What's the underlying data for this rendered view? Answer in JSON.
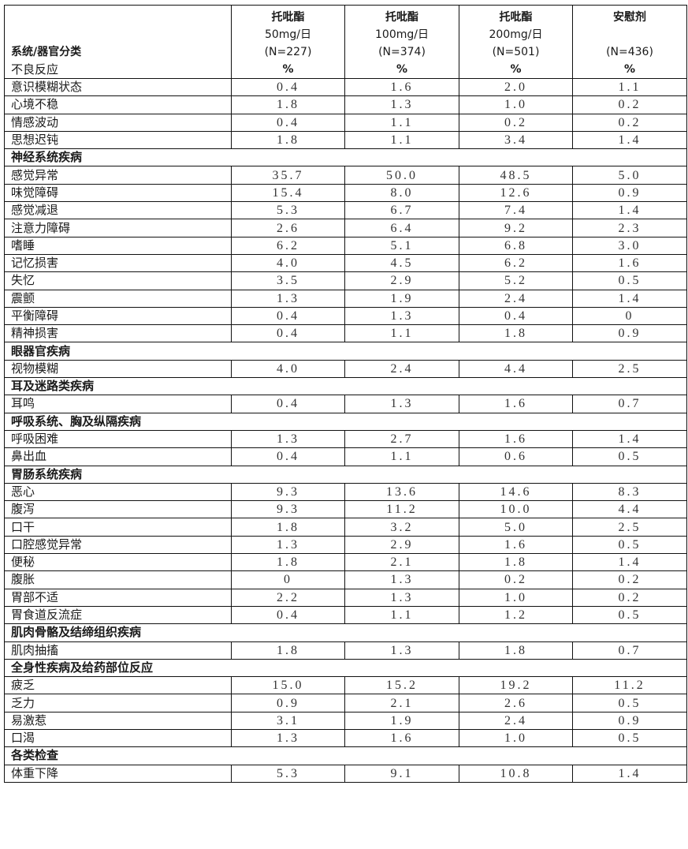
{
  "header": {
    "row_label_top": "系统/器官分类",
    "row_label_bottom": "不良反应",
    "columns": [
      {
        "drug": "托吡酯",
        "dose": "50mg/日",
        "n": "(N=227)",
        "unit": "%"
      },
      {
        "drug": "托吡酯",
        "dose": "100mg/日",
        "n": "(N=374)",
        "unit": "%"
      },
      {
        "drug": "托吡酯",
        "dose": "200mg/日",
        "n": "(N=501)",
        "unit": "%"
      },
      {
        "drug": "安慰剂",
        "dose": "",
        "n": "(N=436)",
        "unit": "%"
      }
    ]
  },
  "rows": [
    {
      "name": "意识模糊状态",
      "values": [
        "0.4",
        "1.6",
        "2.0",
        "1.1"
      ]
    },
    {
      "name": "心境不稳",
      "values": [
        "1.8",
        "1.3",
        "1.0",
        "0.2"
      ]
    },
    {
      "name": "情感波动",
      "values": [
        "0.4",
        "1.1",
        "0.2",
        "0.2"
      ]
    },
    {
      "name": "思想迟钝",
      "values": [
        "1.8",
        "1.1",
        "3.4",
        "1.4"
      ]
    },
    {
      "section": "神经系统疾病"
    },
    {
      "name": "感觉异常",
      "values": [
        "35.7",
        "50.0",
        "48.5",
        "5.0"
      ]
    },
    {
      "name": "味觉障碍",
      "values": [
        "15.4",
        "8.0",
        "12.6",
        "0.9"
      ]
    },
    {
      "name": "感觉减退",
      "values": [
        "5.3",
        "6.7",
        "7.4",
        "1.4"
      ]
    },
    {
      "name": "注意力障碍",
      "values": [
        "2.6",
        "6.4",
        "9.2",
        "2.3"
      ]
    },
    {
      "name": "嗜睡",
      "values": [
        "6.2",
        "5.1",
        "6.8",
        "3.0"
      ]
    },
    {
      "name": "记忆损害",
      "values": [
        "4.0",
        "4.5",
        "6.2",
        "1.6"
      ]
    },
    {
      "name": "失忆",
      "values": [
        "3.5",
        "2.9",
        "5.2",
        "0.5"
      ]
    },
    {
      "name": "震颤",
      "values": [
        "1.3",
        "1.9",
        "2.4",
        "1.4"
      ]
    },
    {
      "name": "平衡障碍",
      "values": [
        "0.4",
        "1.3",
        "0.4",
        "0"
      ]
    },
    {
      "name": "精神损害",
      "values": [
        "0.4",
        "1.1",
        "1.8",
        "0.9"
      ]
    },
    {
      "section": "眼器官疾病"
    },
    {
      "name": "视物模糊",
      "values": [
        "4.0",
        "2.4",
        "4.4",
        "2.5"
      ]
    },
    {
      "section": "耳及迷路类疾病"
    },
    {
      "name": "耳鸣",
      "values": [
        "0.4",
        "1.3",
        "1.6",
        "0.7"
      ]
    },
    {
      "section": "呼吸系统、胸及纵隔疾病"
    },
    {
      "name": "呼吸困难",
      "values": [
        "1.3",
        "2.7",
        "1.6",
        "1.4"
      ]
    },
    {
      "name": "鼻出血",
      "values": [
        "0.4",
        "1.1",
        "0.6",
        "0.5"
      ]
    },
    {
      "section": "胃肠系统疾病"
    },
    {
      "name": "恶心",
      "values": [
        "9.3",
        "13.6",
        "14.6",
        "8.3"
      ]
    },
    {
      "name": "腹泻",
      "values": [
        "9.3",
        "11.2",
        "10.0",
        "4.4"
      ]
    },
    {
      "name": "口干",
      "values": [
        "1.8",
        "3.2",
        "5.0",
        "2.5"
      ]
    },
    {
      "name": "口腔感觉异常",
      "values": [
        "1.3",
        "2.9",
        "1.6",
        "0.5"
      ]
    },
    {
      "name": "便秘",
      "values": [
        "1.8",
        "2.1",
        "1.8",
        "1.4"
      ]
    },
    {
      "name": "腹胀",
      "values": [
        "0",
        "1.3",
        "0.2",
        "0.2"
      ]
    },
    {
      "name": "胃部不适",
      "values": [
        "2.2",
        "1.3",
        "1.0",
        "0.2"
      ]
    },
    {
      "name": "胃食道反流症",
      "values": [
        "0.4",
        "1.1",
        "1.2",
        "0.5"
      ]
    },
    {
      "section": "肌肉骨骼及结缔组织疾病"
    },
    {
      "name": "肌肉抽搐",
      "values": [
        "1.8",
        "1.3",
        "1.8",
        "0.7"
      ]
    },
    {
      "section": "全身性疾病及给药部位反应"
    },
    {
      "name": "疲乏",
      "values": [
        "15.0",
        "15.2",
        "19.2",
        "11.2"
      ]
    },
    {
      "name": "乏力",
      "values": [
        "0.9",
        "2.1",
        "2.6",
        "0.5"
      ]
    },
    {
      "name": "易激惹",
      "values": [
        "3.1",
        "1.9",
        "2.4",
        "0.9"
      ]
    },
    {
      "name": "口渴",
      "values": [
        "1.3",
        "1.6",
        "1.0",
        "0.5"
      ]
    },
    {
      "section": "各类检查"
    },
    {
      "name": "体重下降",
      "values": [
        "5.3",
        "9.1",
        "10.8",
        "1.4"
      ]
    }
  ]
}
